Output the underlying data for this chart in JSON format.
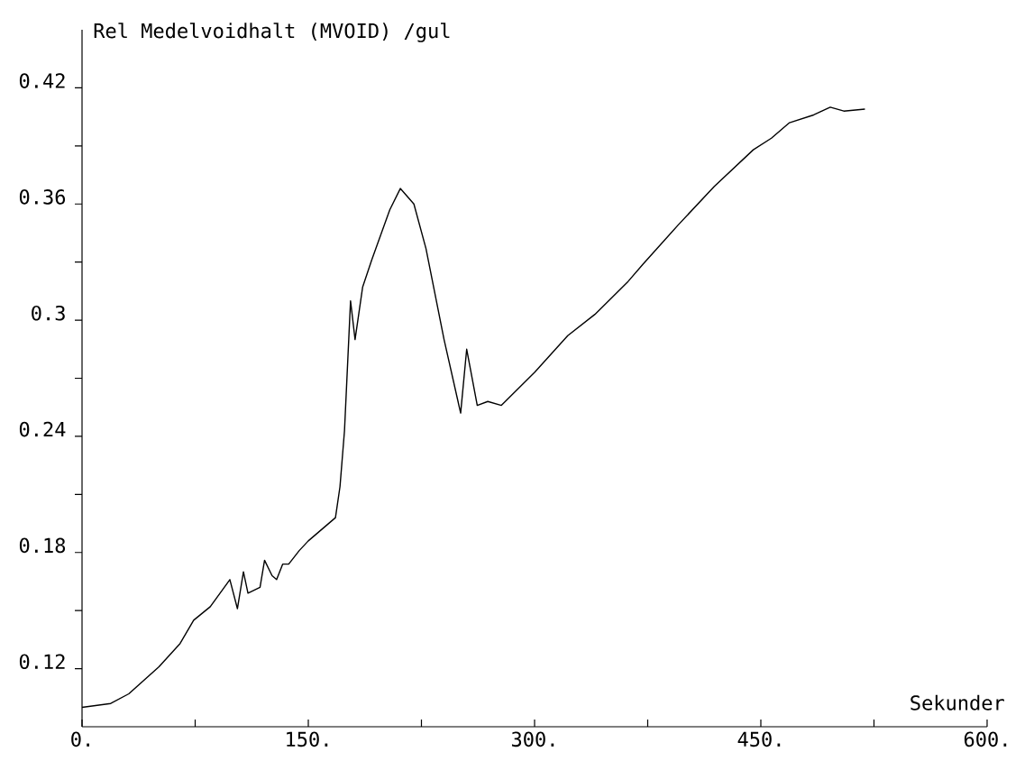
{
  "chart_data": {
    "type": "line",
    "ylabel": "Rel  Medelvoidhalt  (MVOID) /gul",
    "xlabel": "Sekunder",
    "series": [
      {
        "color": "#000000",
        "x": [
          0,
          19,
          31,
          51,
          65,
          74,
          85,
          98,
          103,
          107,
          110,
          118,
          121,
          126,
          129,
          133,
          137,
          144,
          150,
          168,
          171,
          174,
          178,
          181,
          186,
          192,
          204,
          211,
          220,
          228,
          240,
          251,
          255,
          262,
          269,
          278,
          300,
          322,
          340,
          362,
          372,
          395,
          419,
          445,
          457,
          469,
          485,
          496,
          505,
          519
        ],
        "values": [
          0.1,
          0.102,
          0.107,
          0.121,
          0.133,
          0.145,
          0.152,
          0.166,
          0.151,
          0.17,
          0.159,
          0.162,
          0.176,
          0.168,
          0.166,
          0.174,
          0.174,
          0.181,
          0.186,
          0.198,
          0.214,
          0.243,
          0.31,
          0.29,
          0.317,
          0.331,
          0.357,
          0.368,
          0.36,
          0.337,
          0.29,
          0.252,
          0.285,
          0.256,
          0.258,
          0.256,
          0.273,
          0.292,
          0.303,
          0.32,
          0.329,
          0.349,
          0.369,
          0.388,
          0.394,
          0.402,
          0.406,
          0.41,
          0.408,
          0.409
        ]
      }
    ],
    "xlim": [
      0,
      600
    ],
    "ylim": [
      0.09,
      0.45
    ],
    "xticks": [
      {
        "value": 0,
        "label": "0."
      },
      {
        "value": 75,
        "label": null
      },
      {
        "value": 150,
        "label": "150."
      },
      {
        "value": 225,
        "label": null
      },
      {
        "value": 300,
        "label": "300."
      },
      {
        "value": 375,
        "label": null
      },
      {
        "value": 450,
        "label": "450."
      },
      {
        "value": 525,
        "label": null
      },
      {
        "value": 600,
        "label": "600."
      }
    ],
    "yticks": [
      0.12,
      {
        "value": 0.15,
        "label": null
      },
      0.18,
      {
        "value": 0.21,
        "label": null
      },
      0.24,
      {
        "value": 0.27,
        "label": null
      },
      0.3,
      {
        "value": 0.33,
        "label": null
      },
      0.36,
      {
        "value": 0.39,
        "label": null
      },
      0.42
    ],
    "grid": false,
    "marker": "none",
    "line_style": "solid"
  }
}
